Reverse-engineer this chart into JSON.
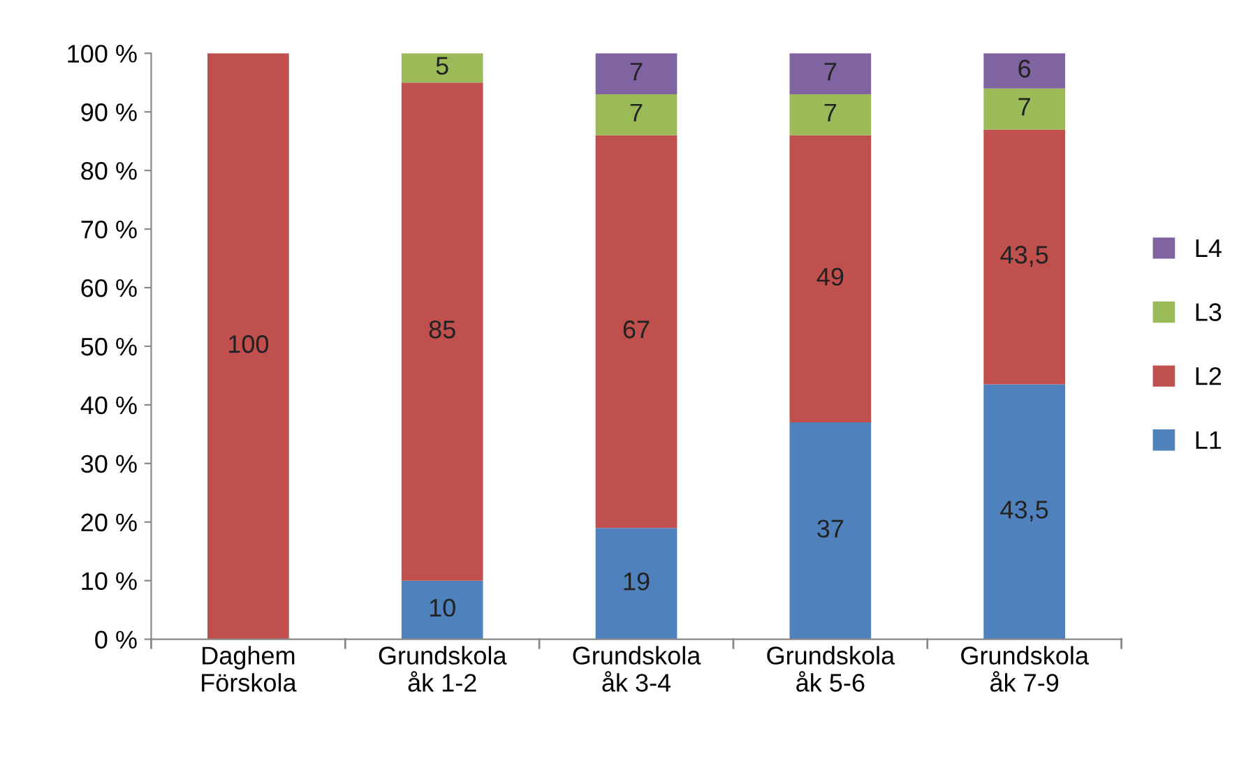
{
  "chart_data": {
    "type": "bar",
    "stacked": true,
    "categories": [
      "Daghem\nFörskola",
      "Grundskola\nåk 1-2",
      "Grundskola\nåk 3-4",
      "Grundskola\nåk 5-6",
      "Grundskola\nåk 7-9"
    ],
    "series": [
      {
        "name": "L1",
        "color": "#4f81bd",
        "values": [
          0,
          10,
          19,
          37,
          43.5
        ],
        "value_labels": [
          null,
          "10",
          "19",
          "37",
          "43,5"
        ]
      },
      {
        "name": "L2",
        "color": "#c0504d",
        "values": [
          100,
          85,
          67,
          49,
          43.5
        ],
        "value_labels": [
          "100",
          "85",
          "67",
          "49",
          "43,5"
        ]
      },
      {
        "name": "L3",
        "color": "#9bbb59",
        "values": [
          0,
          5,
          7,
          7,
          7
        ],
        "value_labels": [
          null,
          "5",
          "7",
          "7",
          "7"
        ]
      },
      {
        "name": "L4",
        "color": "#8064a2",
        "values": [
          0,
          0,
          7,
          7,
          6
        ],
        "value_labels": [
          null,
          null,
          "7",
          "7",
          "6"
        ]
      }
    ],
    "ylim": [
      0,
      100
    ],
    "yticks": [
      {
        "value": 0,
        "label": "0 %"
      },
      {
        "value": 10,
        "label": "10 %"
      },
      {
        "value": 20,
        "label": "20 %"
      },
      {
        "value": 30,
        "label": "30 %"
      },
      {
        "value": 40,
        "label": "40 %"
      },
      {
        "value": 50,
        "label": "50 %"
      },
      {
        "value": 60,
        "label": "60 %"
      },
      {
        "value": 70,
        "label": "70 %"
      },
      {
        "value": 80,
        "label": "80 %"
      },
      {
        "value": 90,
        "label": "90 %"
      },
      {
        "value": 100,
        "label": "100 %"
      }
    ],
    "legend": "right"
  }
}
